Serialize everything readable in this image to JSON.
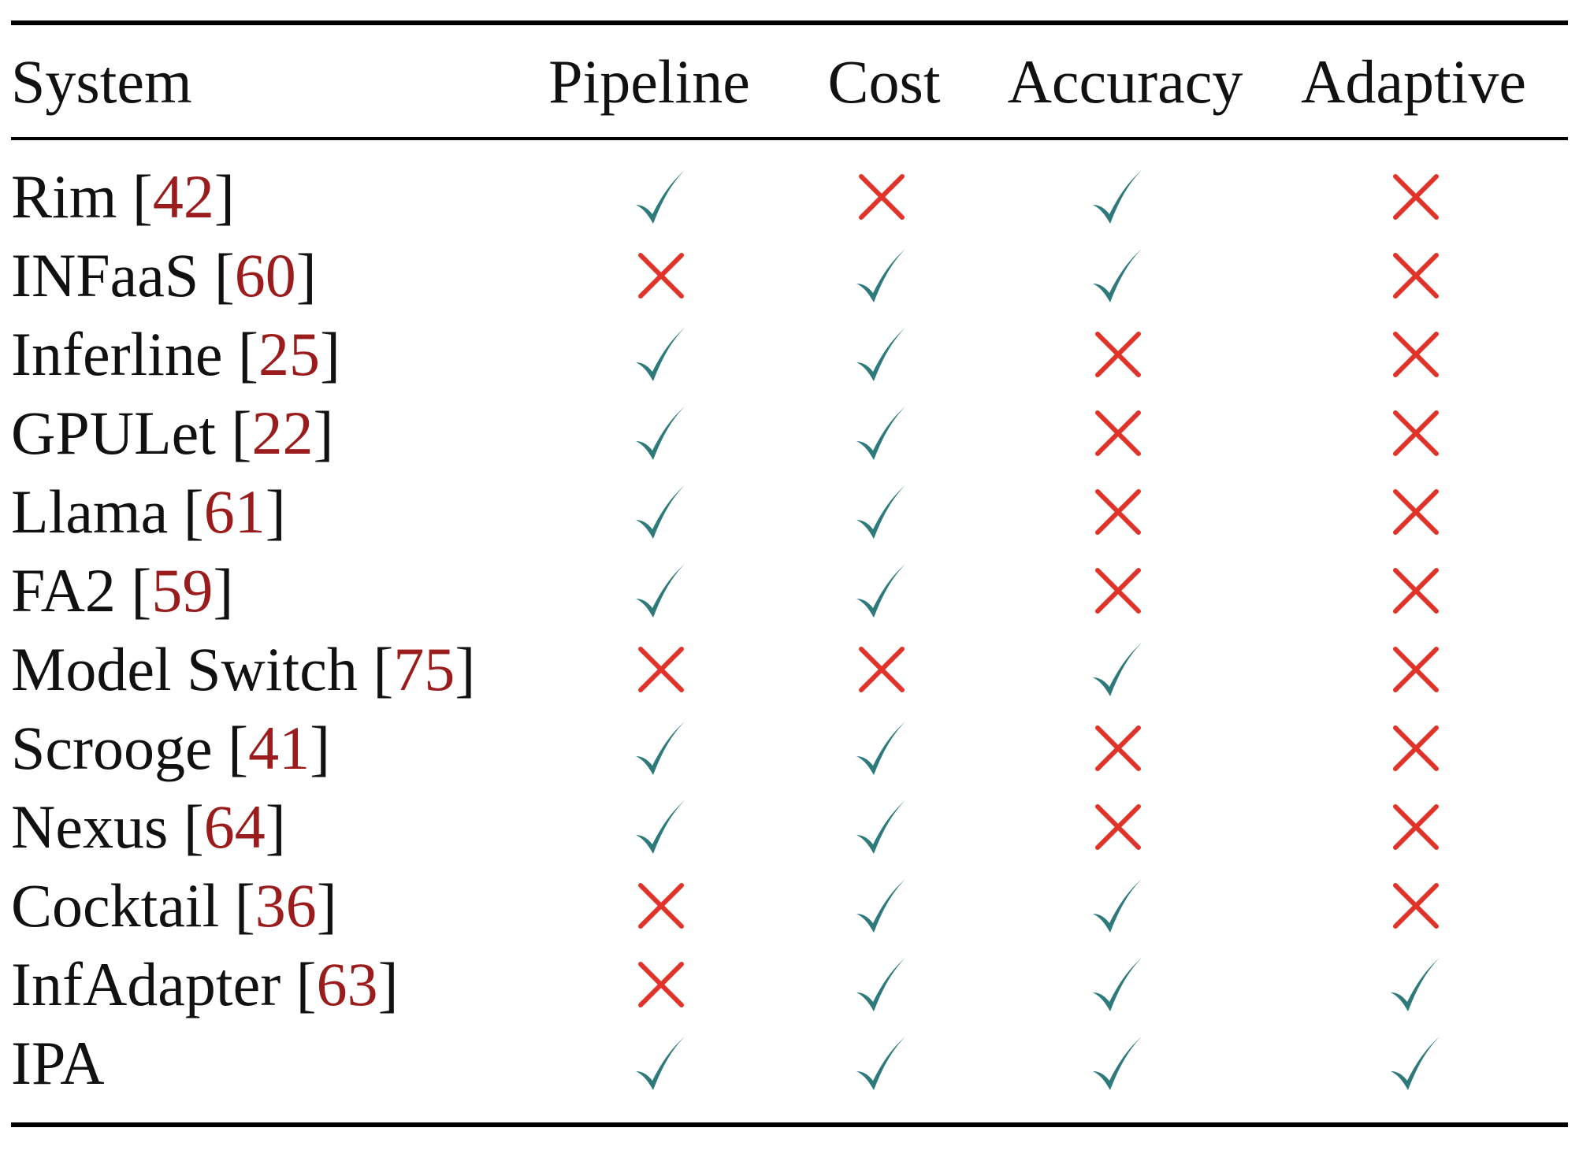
{
  "header": {
    "system": "System",
    "pipeline": "Pipeline",
    "cost": "Cost",
    "accuracy": "Accuracy",
    "adaptive": "Adaptive"
  },
  "marks": {
    "yes_icon": "check-icon",
    "no_icon": "cross-icon",
    "yes_color": "#2e7a7b",
    "no_color": "#e0342b",
    "ref_color": "#9b1c1c"
  },
  "rows": [
    {
      "name": "Rim",
      "ref": "42",
      "pipeline": true,
      "cost": false,
      "accuracy": true,
      "adaptive": false
    },
    {
      "name": "INFaaS",
      "ref": "60",
      "pipeline": false,
      "cost": true,
      "accuracy": true,
      "adaptive": false
    },
    {
      "name": "Inferline",
      "ref": "25",
      "pipeline": true,
      "cost": true,
      "accuracy": false,
      "adaptive": false
    },
    {
      "name": "GPULet",
      "ref": "22",
      "pipeline": true,
      "cost": true,
      "accuracy": false,
      "adaptive": false
    },
    {
      "name": "Llama",
      "ref": "61",
      "pipeline": true,
      "cost": true,
      "accuracy": false,
      "adaptive": false
    },
    {
      "name": "FA2",
      "ref": "59",
      "pipeline": true,
      "cost": true,
      "accuracy": false,
      "adaptive": false
    },
    {
      "name": "Model Switch",
      "ref": "75",
      "pipeline": false,
      "cost": false,
      "accuracy": true,
      "adaptive": false
    },
    {
      "name": "Scrooge",
      "ref": "41",
      "pipeline": true,
      "cost": true,
      "accuracy": false,
      "adaptive": false
    },
    {
      "name": "Nexus",
      "ref": "64",
      "pipeline": true,
      "cost": true,
      "accuracy": false,
      "adaptive": false
    },
    {
      "name": "Cocktail",
      "ref": "36",
      "pipeline": false,
      "cost": true,
      "accuracy": true,
      "adaptive": false
    },
    {
      "name": "InfAdapter",
      "ref": "63",
      "pipeline": false,
      "cost": true,
      "accuracy": true,
      "adaptive": true
    },
    {
      "name": "IPA",
      "ref": "",
      "pipeline": true,
      "cost": true,
      "accuracy": true,
      "adaptive": true
    }
  ]
}
